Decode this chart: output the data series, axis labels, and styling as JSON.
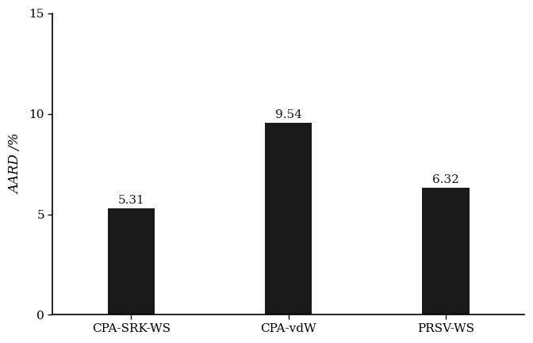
{
  "categories": [
    "CPA-SRK-WS",
    "CPA-vdW",
    "PRSV-WS"
  ],
  "values": [
    5.31,
    9.54,
    6.32
  ],
  "bar_color": "#1a1a1a",
  "bar_width": 0.3,
  "ylabel": "AARD /%",
  "ylim": [
    0,
    15
  ],
  "yticks": [
    0,
    5,
    10,
    15
  ],
  "label_fontsize": 12,
  "tick_fontsize": 11,
  "value_fontsize": 11,
  "background_color": "#ffffff",
  "ylabel_style": "italic",
  "spine_linewidth": 1.2,
  "figsize": [
    6.72,
    4.33
  ],
  "dpi": 100
}
